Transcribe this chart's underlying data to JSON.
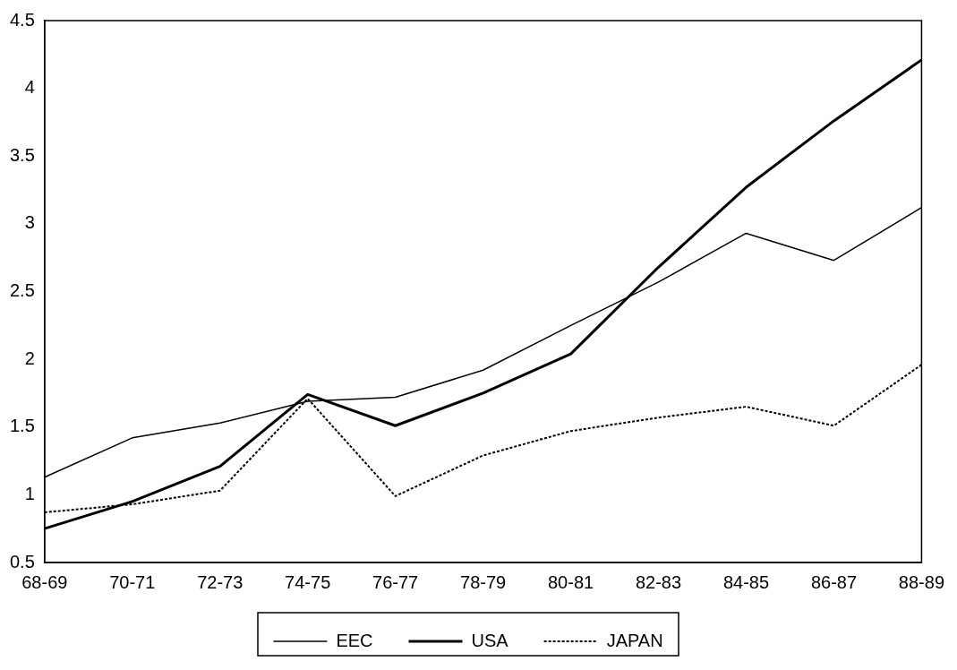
{
  "chart_data": {
    "type": "line",
    "categories": [
      "68-69",
      "70-71",
      "72-73",
      "74-75",
      "76-77",
      "78-79",
      "80-81",
      "82-83",
      "84-85",
      "86-87",
      "88-89"
    ],
    "series": [
      {
        "name": "EEC",
        "color": "#000000",
        "line_style": "solid",
        "values": [
          1.13,
          1.42,
          1.53,
          1.69,
          1.72,
          1.92,
          2.25,
          2.57,
          2.93,
          2.73,
          3.12
        ]
      },
      {
        "name": "USA",
        "color": "#000000",
        "line_style": "solid",
        "values": [
          0.75,
          0.95,
          1.21,
          1.74,
          1.51,
          1.75,
          2.04,
          2.68,
          3.27,
          3.76,
          4.21
        ]
      },
      {
        "name": "JAPAN",
        "color": "#000000",
        "line_style": "dotted",
        "values": [
          0.87,
          0.93,
          1.03,
          1.71,
          0.99,
          1.29,
          1.47,
          1.57,
          1.65,
          1.51,
          1.96
        ]
      }
    ],
    "ylim": [
      0.5,
      4.5
    ],
    "yticks": [
      0.5,
      1,
      1.5,
      2,
      2.5,
      3,
      3.5,
      4,
      4.5
    ],
    "grid": false,
    "legend": "bottom",
    "marker": "none"
  }
}
